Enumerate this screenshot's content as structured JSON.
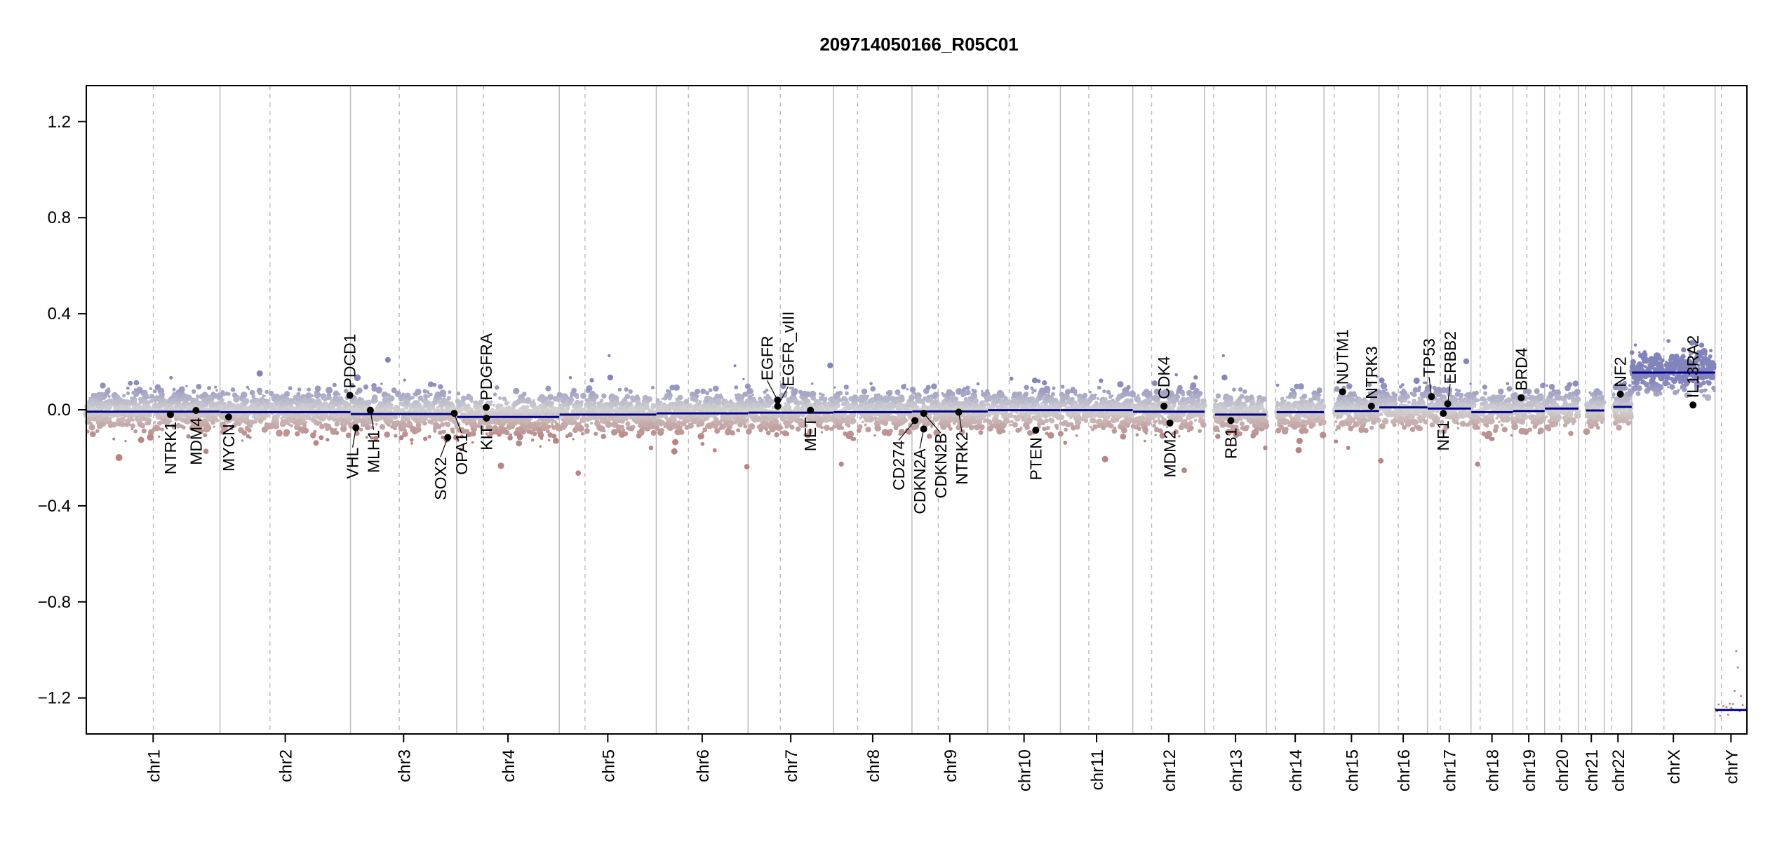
{
  "chart_data": {
    "type": "scatter",
    "title": "209714050166_R05C01",
    "xlabel": "",
    "ylabel": "",
    "ylim": [
      -1.35,
      1.35
    ],
    "yticks": [
      -1.2,
      -0.8,
      -0.4,
      0.0,
      0.4,
      0.8,
      1.2
    ],
    "ytick_labels": [
      "−1.2",
      "−0.8",
      "−0.4",
      "0.0",
      "0.4",
      "0.8",
      "1.2"
    ],
    "grid": false,
    "colors": {
      "gain": "#8484bc",
      "neutral": "#d2d2d2",
      "loss": "#b88484",
      "segment": "#00008b",
      "chrom_boundary": "#bdbdbd",
      "centromere": "#bdbdbd",
      "gene_point": "#000000"
    },
    "chromosomes": [
      {
        "name": "chr1",
        "length_mb": 249.3,
        "centromere_mb": 125,
        "segment_mean": -0.008
      },
      {
        "name": "chr2",
        "length_mb": 243.2,
        "centromere_mb": 93,
        "segment_mean": -0.01
      },
      {
        "name": "chr3",
        "length_mb": 198.0,
        "centromere_mb": 91,
        "segment_mean": -0.018
      },
      {
        "name": "chr4",
        "length_mb": 191.2,
        "centromere_mb": 50,
        "segment_mean": -0.03
      },
      {
        "name": "chr5",
        "length_mb": 180.9,
        "centromere_mb": 48,
        "segment_mean": -0.02
      },
      {
        "name": "chr6",
        "length_mb": 171.1,
        "centromere_mb": 60,
        "segment_mean": -0.015
      },
      {
        "name": "chr7",
        "length_mb": 159.1,
        "centromere_mb": 60,
        "segment_mean": -0.012
      },
      {
        "name": "chr8",
        "length_mb": 146.4,
        "centromere_mb": 45,
        "segment_mean": -0.01
      },
      {
        "name": "chr9",
        "length_mb": 141.2,
        "centromere_mb": 49,
        "segment_mean": -0.007
      },
      {
        "name": "chr10",
        "length_mb": 135.5,
        "centromere_mb": 40,
        "segment_mean": -0.002
      },
      {
        "name": "chr11",
        "length_mb": 135.0,
        "centromere_mb": 53,
        "segment_mean": -0.002
      },
      {
        "name": "chr12",
        "length_mb": 133.9,
        "centromere_mb": 35,
        "segment_mean": -0.008
      },
      {
        "name": "chr13",
        "length_mb": 115.2,
        "centromere_mb": 17,
        "segment_mean": -0.02
      },
      {
        "name": "chr14",
        "length_mb": 107.3,
        "centromere_mb": 17,
        "segment_mean": -0.01
      },
      {
        "name": "chr15",
        "length_mb": 102.5,
        "centromere_mb": 19,
        "segment_mean": -0.005
      },
      {
        "name": "chr16",
        "length_mb": 90.4,
        "centromere_mb": 36,
        "segment_mean": 0.01
      },
      {
        "name": "chr17",
        "length_mb": 81.2,
        "centromere_mb": 24,
        "segment_mean": 0.005
      },
      {
        "name": "chr18",
        "length_mb": 78.1,
        "centromere_mb": 17,
        "segment_mean": -0.01
      },
      {
        "name": "chr19",
        "length_mb": 59.1,
        "centromere_mb": 26,
        "segment_mean": -0.005
      },
      {
        "name": "chr20",
        "length_mb": 63.0,
        "centromere_mb": 28,
        "segment_mean": 0.005
      },
      {
        "name": "chr21",
        "length_mb": 48.1,
        "centromere_mb": 13,
        "segment_mean": -0.003
      },
      {
        "name": "chr22",
        "length_mb": 51.3,
        "centromere_mb": 14,
        "segment_mean": 0.012
      },
      {
        "name": "chrX",
        "length_mb": 155.3,
        "centromere_mb": 60,
        "segment_mean": 0.155
      },
      {
        "name": "chrY",
        "length_mb": 59.4,
        "centromere_mb": 12,
        "segment_mean": -1.25
      }
    ],
    "genes": [
      {
        "name": "NTRK1",
        "chr": "chr1",
        "pos_mb": 156.8,
        "value": -0.02
      },
      {
        "name": "MDM4",
        "chr": "chr1",
        "pos_mb": 204.5,
        "value": -0.003
      },
      {
        "name": "MYCN",
        "chr": "chr2",
        "pos_mb": 16.0,
        "value": -0.03
      },
      {
        "name": "PDCD1",
        "chr": "chr2",
        "pos_mb": 242.0,
        "value": 0.06
      },
      {
        "name": "VHL",
        "chr": "chr3",
        "pos_mb": 10.2,
        "value": -0.075
      },
      {
        "name": "MLH1",
        "chr": "chr3",
        "pos_mb": 37.0,
        "value": -0.002
      },
      {
        "name": "SOX2",
        "chr": "chr3",
        "pos_mb": 181.4,
        "value": -0.115
      },
      {
        "name": "OPA1",
        "chr": "chr3",
        "pos_mb": 193.3,
        "value": -0.015
      },
      {
        "name": "PDGFRA",
        "chr": "chr4",
        "pos_mb": 55.1,
        "value": 0.01
      },
      {
        "name": "KIT",
        "chr": "chr4",
        "pos_mb": 55.5,
        "value": -0.035
      },
      {
        "name": "EGFR",
        "chr": "chr7",
        "pos_mb": 55.1,
        "value": 0.04
      },
      {
        "name": "EGFR_vIII",
        "chr": "chr7",
        "pos_mb": 55.2,
        "value": 0.015
      },
      {
        "name": "MET",
        "chr": "chr7",
        "pos_mb": 116.3,
        "value": -0.002
      },
      {
        "name": "CD274",
        "chr": "chr9",
        "pos_mb": 5.5,
        "value": -0.045
      },
      {
        "name": "CDKN2A",
        "chr": "chr9",
        "pos_mb": 21.9,
        "value": -0.08
      },
      {
        "name": "CDKN2B",
        "chr": "chr9",
        "pos_mb": 22.0,
        "value": -0.015
      },
      {
        "name": "NTRK2",
        "chr": "chr9",
        "pos_mb": 87.3,
        "value": -0.01
      },
      {
        "name": "PTEN",
        "chr": "chr10",
        "pos_mb": 89.6,
        "value": -0.085
      },
      {
        "name": "CDK4",
        "chr": "chr12",
        "pos_mb": 58.1,
        "value": 0.015
      },
      {
        "name": "MDM2",
        "chr": "chr12",
        "pos_mb": 69.2,
        "value": -0.055
      },
      {
        "name": "RB1",
        "chr": "chr13",
        "pos_mb": 48.9,
        "value": -0.045
      },
      {
        "name": "NUTM1",
        "chr": "chr15",
        "pos_mb": 34.6,
        "value": 0.075
      },
      {
        "name": "NTRK3",
        "chr": "chr15",
        "pos_mb": 88.5,
        "value": 0.015
      },
      {
        "name": "TP53",
        "chr": "chr17",
        "pos_mb": 7.5,
        "value": 0.055
      },
      {
        "name": "NF1",
        "chr": "chr17",
        "pos_mb": 29.5,
        "value": -0.015
      },
      {
        "name": "ERBB2",
        "chr": "chr17",
        "pos_mb": 37.8,
        "value": 0.025
      },
      {
        "name": "BRD4",
        "chr": "chr19",
        "pos_mb": 15.4,
        "value": 0.05
      },
      {
        "name": "NF2",
        "chr": "chr22",
        "pos_mb": 30.0,
        "value": 0.065
      },
      {
        "name": "IL13RA2",
        "chr": "chrX",
        "pos_mb": 114.2,
        "value": 0.02
      }
    ]
  }
}
